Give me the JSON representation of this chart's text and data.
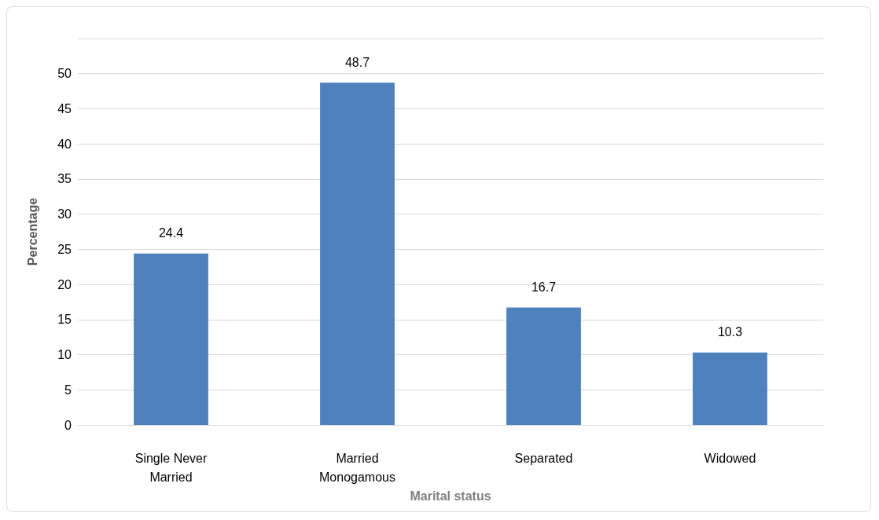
{
  "chart_data": {
    "type": "bar",
    "xlabel": "Marital status",
    "ylabel": "Percentage",
    "categories": [
      "Single Never\nMarried",
      "Married\nMonogamous",
      "Separated",
      "Widowed"
    ],
    "values": [
      24.4,
      48.7,
      16.7,
      10.3
    ],
    "color": "#4f81bd",
    "ylim": [
      0,
      55
    ],
    "yticks": [
      0,
      5,
      10,
      15,
      20,
      25,
      30,
      35,
      40,
      45,
      50,
      {
        "value": 55,
        "label": null
      }
    ],
    "grid": "y",
    "data_labels": true
  }
}
